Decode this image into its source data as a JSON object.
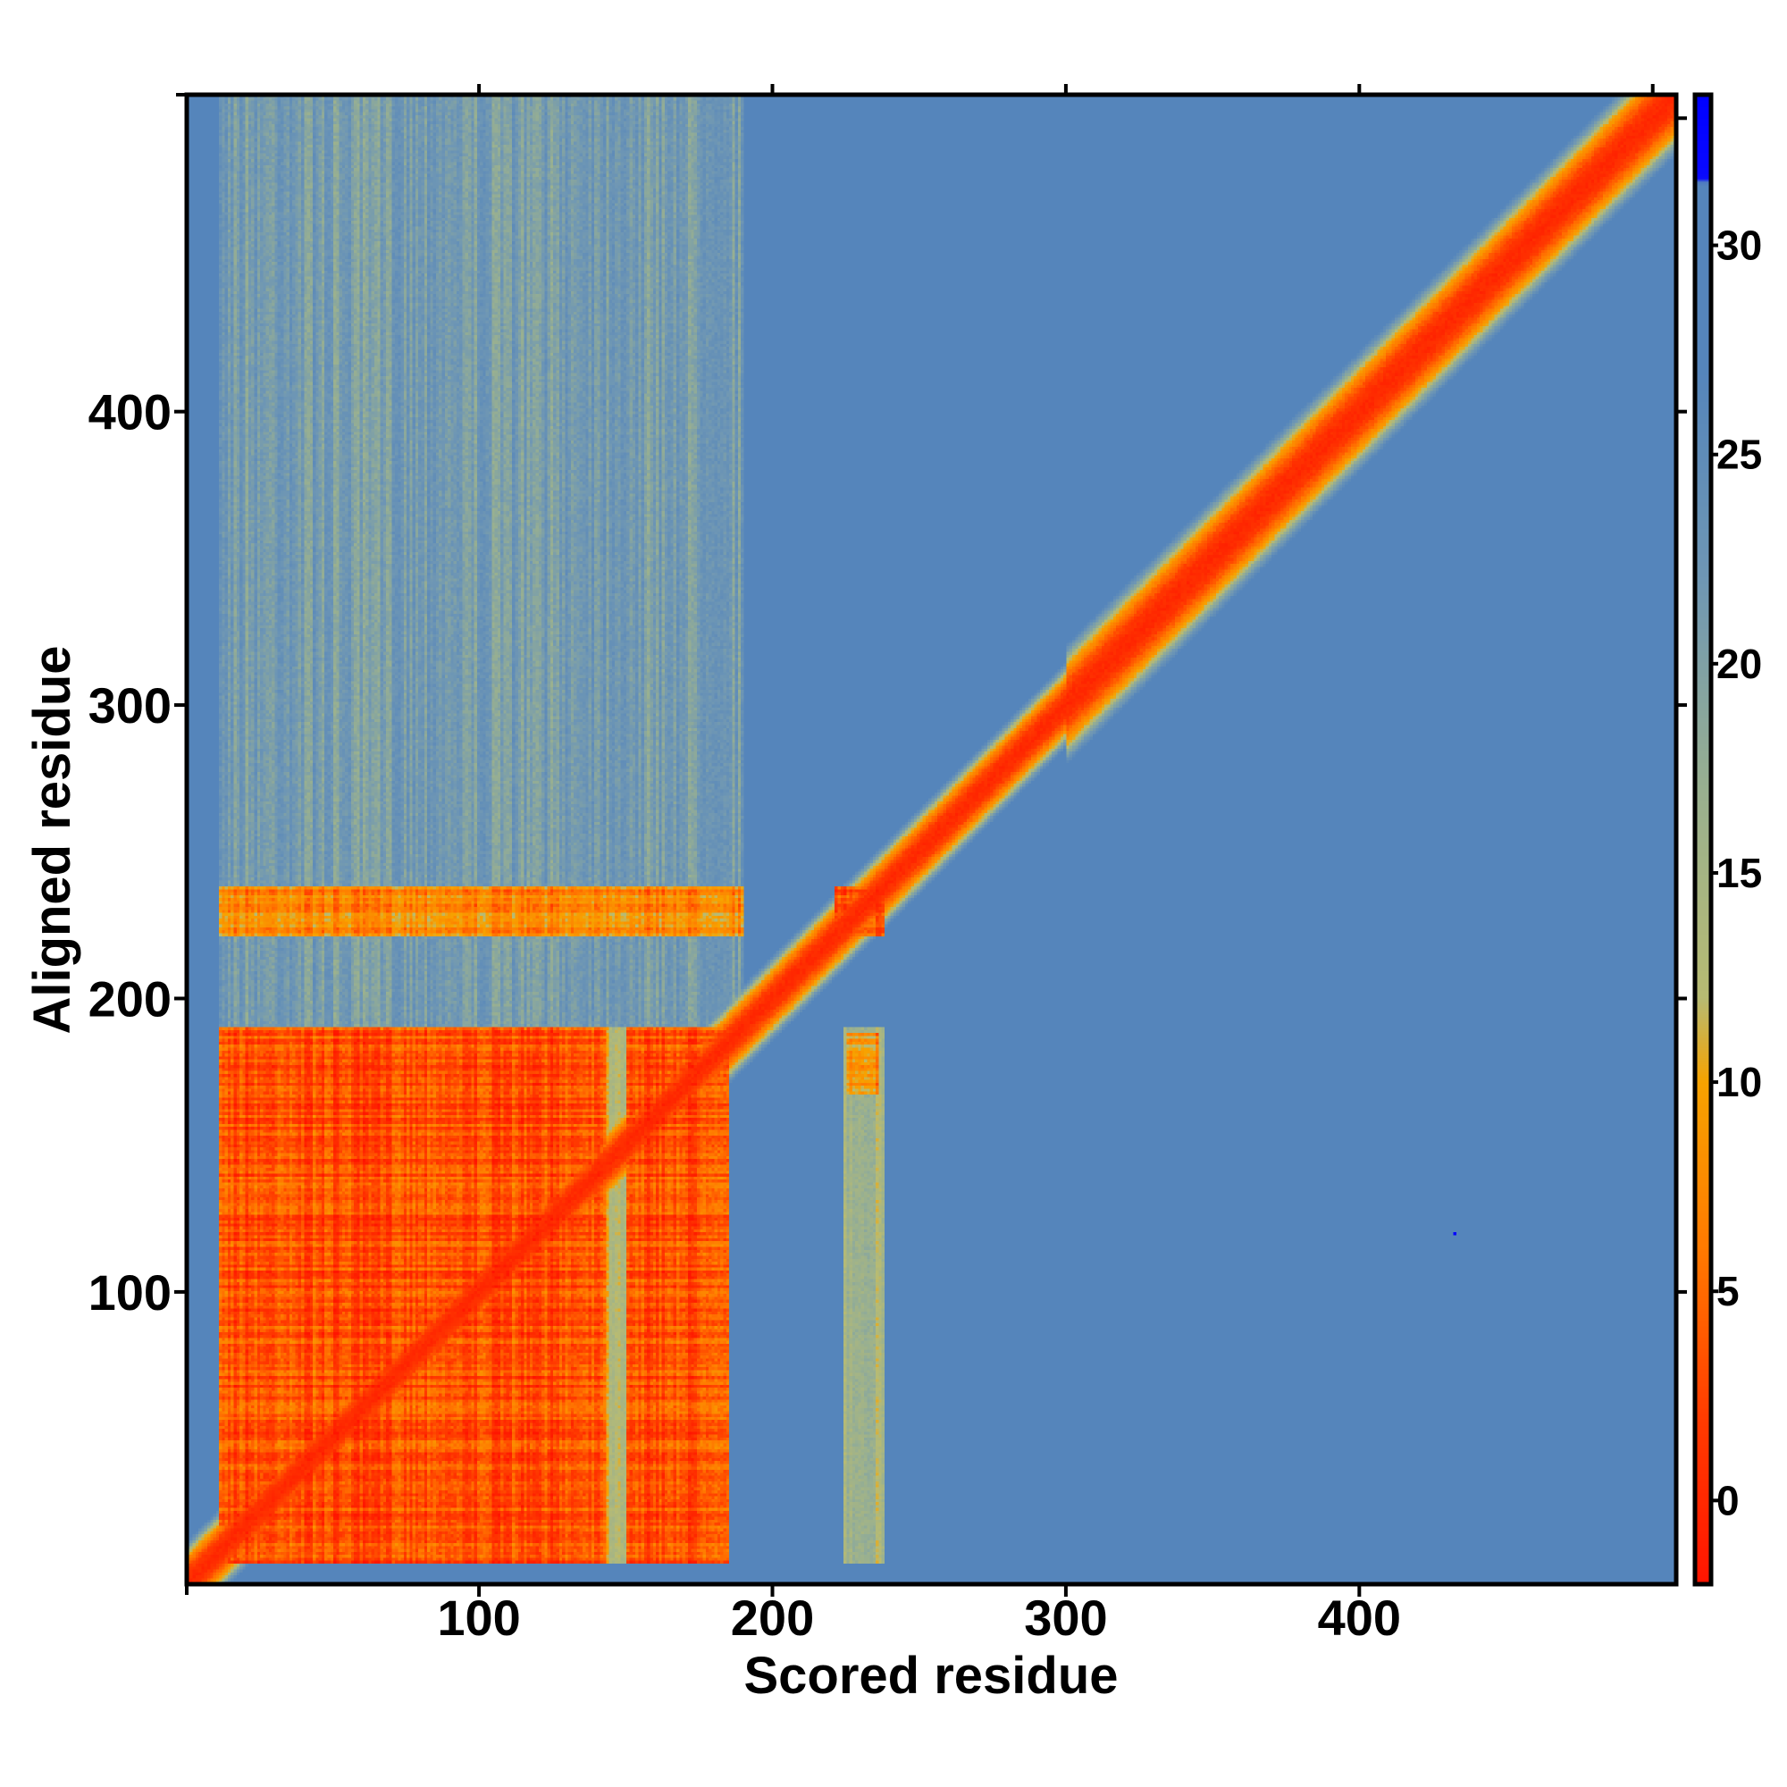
{
  "chart_data": {
    "type": "heatmap",
    "title": "",
    "xlabel": "Scored residue",
    "ylabel": "Aligned residue",
    "xlim": [
      0.4,
      508
    ],
    "ylim": [
      0.4,
      508
    ],
    "x_ticks": [
      100,
      200,
      300,
      400
    ],
    "y_ticks": [
      100,
      200,
      300,
      400
    ],
    "top_ticks": [
      100,
      200,
      300,
      400,
      500
    ],
    "right_ticks": [
      100,
      200,
      300,
      400,
      500
    ],
    "colorbar": {
      "range": [
        -2,
        33.6
      ],
      "ticks": [
        0,
        5,
        10,
        15,
        20,
        25,
        30
      ],
      "stops": [
        {
          "value": -2,
          "color": "#ff1500"
        },
        {
          "value": 2,
          "color": "#ff3c00"
        },
        {
          "value": 6,
          "color": "#ff7a00"
        },
        {
          "value": 10,
          "color": "#f7a300"
        },
        {
          "value": 12,
          "color": "#b8bb72"
        },
        {
          "value": 17,
          "color": "#99b090"
        },
        {
          "value": 22,
          "color": "#6f97b4"
        },
        {
          "value": 27,
          "color": "#5585bb"
        },
        {
          "value": 31.5,
          "color": "#5585bb"
        },
        {
          "value": 31.6,
          "color": "#0a0aff"
        },
        {
          "value": 33.6,
          "color": "#0000ff"
        }
      ]
    },
    "background_value": 28,
    "diagonal": {
      "center_value": 0,
      "halfwidth_residues": 6
    },
    "regions": [
      {
        "name": "N-terminal domain block",
        "x": [
          12,
          185
        ],
        "y": [
          8,
          190
        ],
        "value": 3
      },
      {
        "name": "gap column",
        "x": [
          144,
          150
        ],
        "y": [
          8,
          190
        ],
        "value": 12
      },
      {
        "name": "off-diagonal band",
        "x": [
          12,
          190
        ],
        "y": [
          222,
          238
        ],
        "value": 7
      },
      {
        "name": "linker column",
        "x": [
          225,
          238
        ],
        "y": [
          8,
          190
        ],
        "value": 15
      },
      {
        "name": "linker column spot",
        "x": [
          226,
          236
        ],
        "y": [
          168,
          188
        ],
        "value": 8
      },
      {
        "name": "linker knot",
        "x": [
          222,
          238
        ],
        "y": [
          222,
          238
        ],
        "value": 3
      },
      {
        "name": "faint block haze",
        "x": [
          12,
          190
        ],
        "y": [
          190,
          508
        ],
        "value": 21
      }
    ],
    "outlier_points": [
      {
        "x": 433,
        "y": 120,
        "value": 33
      }
    ]
  }
}
